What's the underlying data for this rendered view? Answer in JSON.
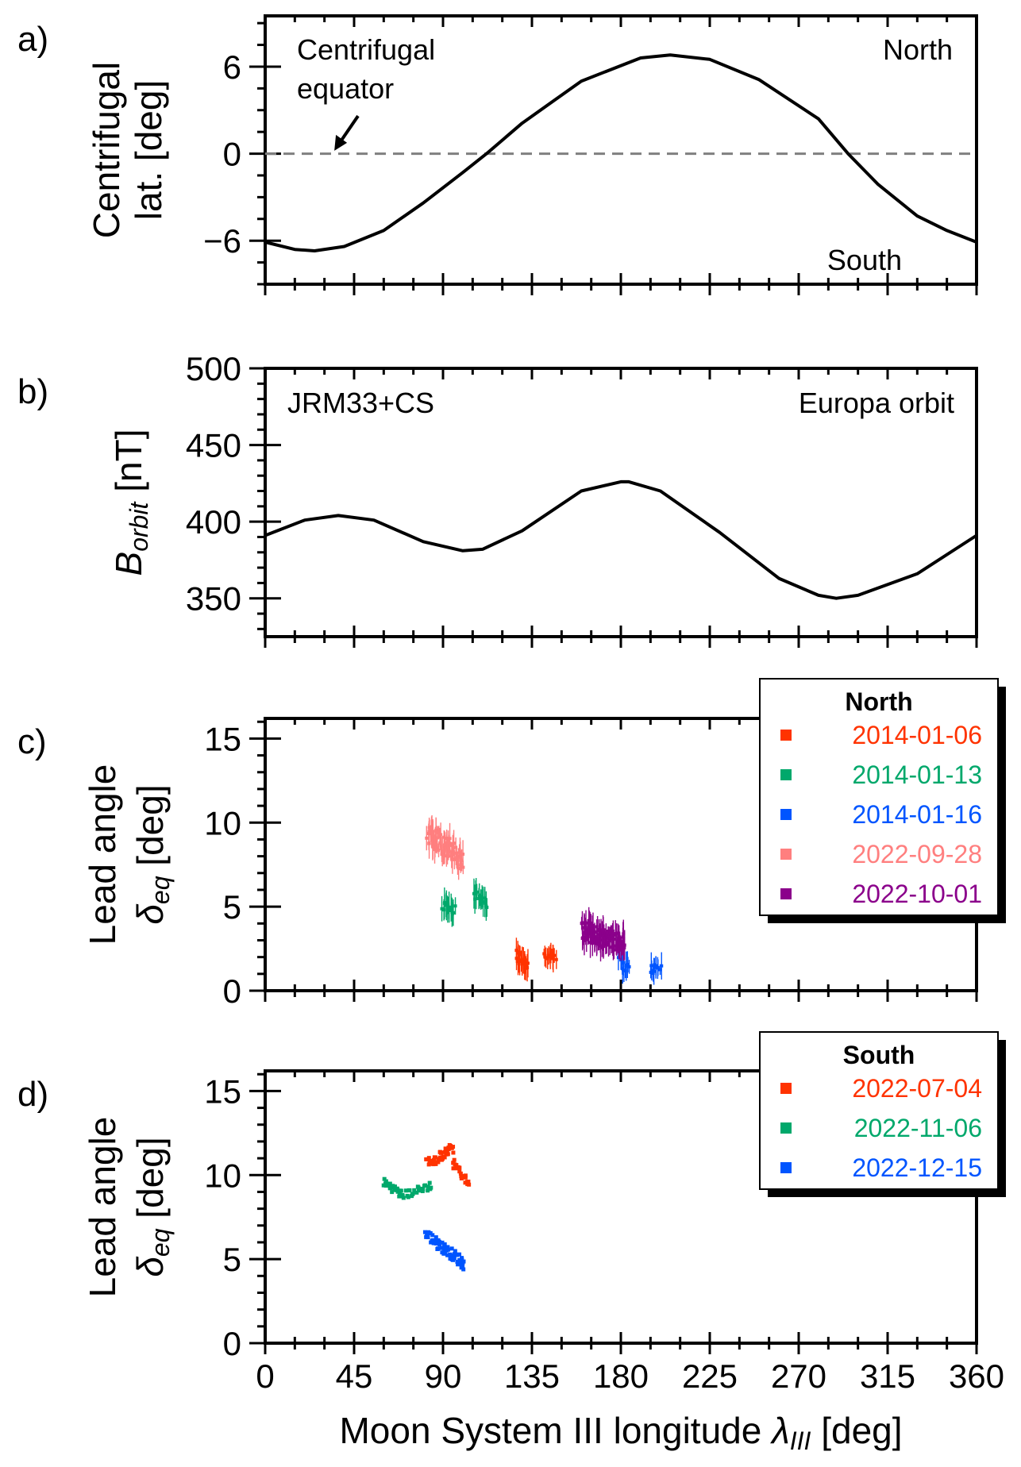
{
  "chart_data": [
    {
      "id": "a",
      "type": "line",
      "panel_label": "a)",
      "ylabel_lines": [
        "Centrifugal",
        "lat. [deg]"
      ],
      "xlim": [
        0,
        360
      ],
      "ylim": [
        -9,
        9.5
      ],
      "yticks": [
        6,
        0,
        -6
      ],
      "ytick_labels": [
        "6",
        "0",
        "−6"
      ],
      "x": [
        0,
        15,
        25,
        40,
        60,
        80,
        100,
        112,
        130,
        160,
        190,
        205,
        225,
        250,
        280,
        295,
        310,
        330,
        345,
        360
      ],
      "y": [
        -6.1,
        -6.6,
        -6.7,
        -6.4,
        -5.3,
        -3.4,
        -1.3,
        0.0,
        2.1,
        5.0,
        6.6,
        6.8,
        6.5,
        5.1,
        2.4,
        0.0,
        -2.1,
        -4.3,
        -5.3,
        -6.1
      ],
      "reference_line": {
        "y": 0,
        "style": "dashed",
        "color": "#808080"
      },
      "annotations": {
        "equator_line1": "Centrifugal",
        "equator_line2": "equator",
        "north": "North",
        "south": "South"
      },
      "arrow": {
        "tip": [
          35,
          0.2
        ],
        "tail": [
          47,
          2.6
        ]
      },
      "line_color": "#000000"
    },
    {
      "id": "b",
      "type": "line",
      "panel_label": "b)",
      "ylabel": "B",
      "ylabel_sub": "orbit",
      "ylabel_unit": " [nT]",
      "xlim": [
        0,
        360
      ],
      "ylim": [
        325,
        500
      ],
      "yticks": [
        500,
        450,
        400,
        350
      ],
      "ytick_labels": [
        "500",
        "450",
        "400",
        "350"
      ],
      "x": [
        0,
        20,
        37,
        55,
        80,
        100,
        110,
        130,
        160,
        180,
        184,
        200,
        230,
        260,
        280,
        289,
        300,
        330,
        360
      ],
      "y": [
        391,
        401,
        404,
        401,
        387,
        381,
        382,
        394,
        420,
        426,
        426,
        420,
        393,
        363,
        352,
        350,
        352,
        366,
        391
      ],
      "annotations": {
        "model": "JRM33+CS",
        "orbit": "Europa orbit"
      },
      "line_color": "#000000"
    },
    {
      "id": "c",
      "type": "scatter",
      "panel_label": "c)",
      "ylabel_line1": "Lead angle",
      "ylabel_symbol": "δ",
      "ylabel_sub": "eq",
      "ylabel_unit": " [deg]",
      "xlim": [
        0,
        360
      ],
      "ylim": [
        0,
        16.2
      ],
      "yticks": [
        15,
        10,
        5,
        0
      ],
      "ytick_labels": [
        "15",
        "10",
        "5",
        "0"
      ],
      "legend": {
        "title": "North",
        "placement": "upper-right"
      },
      "series": [
        {
          "name": "2014-01-06",
          "color": "#ff3300",
          "clusters": [
            {
              "x0": 127,
              "x1": 133,
              "y0": 2.1,
              "y1": 1.6,
              "n": 24,
              "noise": 0.9
            },
            {
              "x0": 141,
              "x1": 147,
              "y0": 2.1,
              "y1": 1.9,
              "n": 14,
              "noise": 0.5
            }
          ]
        },
        {
          "name": "2014-01-13",
          "color": "#00a86b",
          "clusters": [
            {
              "x0": 90,
              "x1": 96,
              "y0": 5.0,
              "y1": 4.9,
              "n": 18,
              "noise": 0.7
            },
            {
              "x0": 106,
              "x1": 112,
              "y0": 5.8,
              "y1": 5.3,
              "n": 18,
              "noise": 0.8
            }
          ]
        },
        {
          "name": "2014-01-16",
          "color": "#0055ff",
          "clusters": [
            {
              "x0": 179,
              "x1": 184,
              "y0": 1.7,
              "y1": 1.3,
              "n": 12,
              "noise": 0.6
            },
            {
              "x0": 195,
              "x1": 200,
              "y0": 1.3,
              "y1": 1.3,
              "n": 12,
              "noise": 0.6
            }
          ]
        },
        {
          "name": "2022-09-28",
          "color": "#ff7f7f",
          "clusters": [
            {
              "x0": 82,
              "x1": 100,
              "y0": 9.5,
              "y1": 7.7,
              "n": 80,
              "noise": 1.4
            }
          ]
        },
        {
          "name": "2022-10-01",
          "color": "#8b008b",
          "clusters": [
            {
              "x0": 160,
              "x1": 182,
              "y0": 3.6,
              "y1": 2.8,
              "n": 110,
              "noise": 1.2
            }
          ]
        }
      ]
    },
    {
      "id": "d",
      "type": "scatter",
      "panel_label": "d)",
      "ylabel_line1": "Lead angle",
      "ylabel_symbol": "δ",
      "ylabel_sub": "eq",
      "ylabel_unit": " [deg]",
      "xlim": [
        0,
        360
      ],
      "ylim": [
        0,
        16.2
      ],
      "yticks": [
        15,
        10,
        5,
        0
      ],
      "ytick_labels": [
        "15",
        "10",
        "5",
        "0"
      ],
      "xticks": [
        0,
        45,
        90,
        135,
        180,
        225,
        270,
        315,
        360
      ],
      "xtick_labels": [
        "0",
        "45",
        "90",
        "135",
        "180",
        "225",
        "270",
        "315",
        "360"
      ],
      "xlabel": "Moon System III longitude ",
      "xlabel_symbol": "λ",
      "xlabel_sub": "III",
      "xlabel_unit": " [deg]",
      "legend": {
        "title": "South",
        "placement": "upper-right"
      },
      "series": [
        {
          "name": "2022-07-04",
          "color": "#ff3300",
          "clusters": [
            {
              "x0": 82,
              "x1": 88,
              "y0": 10.8,
              "y1": 10.9,
              "n": 18,
              "noise": 0.5
            },
            {
              "x0": 88,
              "x1": 95,
              "y0": 11.1,
              "y1": 11.6,
              "n": 22,
              "noise": 0.6
            },
            {
              "x0": 95,
              "x1": 103,
              "y0": 10.8,
              "y1": 9.4,
              "n": 24,
              "noise": 0.6
            }
          ]
        },
        {
          "name": "2022-11-06",
          "color": "#00a86b",
          "clusters": [
            {
              "x0": 60,
              "x1": 70,
              "y0": 9.6,
              "y1": 8.8,
              "n": 30,
              "noise": 0.5
            },
            {
              "x0": 70,
              "x1": 84,
              "y0": 8.8,
              "y1": 9.4,
              "n": 26,
              "noise": 0.5
            }
          ]
        },
        {
          "name": "2022-12-15",
          "color": "#0055ff",
          "clusters": [
            {
              "x0": 81,
              "x1": 101,
              "y0": 6.5,
              "y1": 4.7,
              "n": 70,
              "noise": 0.7
            }
          ]
        }
      ]
    }
  ]
}
